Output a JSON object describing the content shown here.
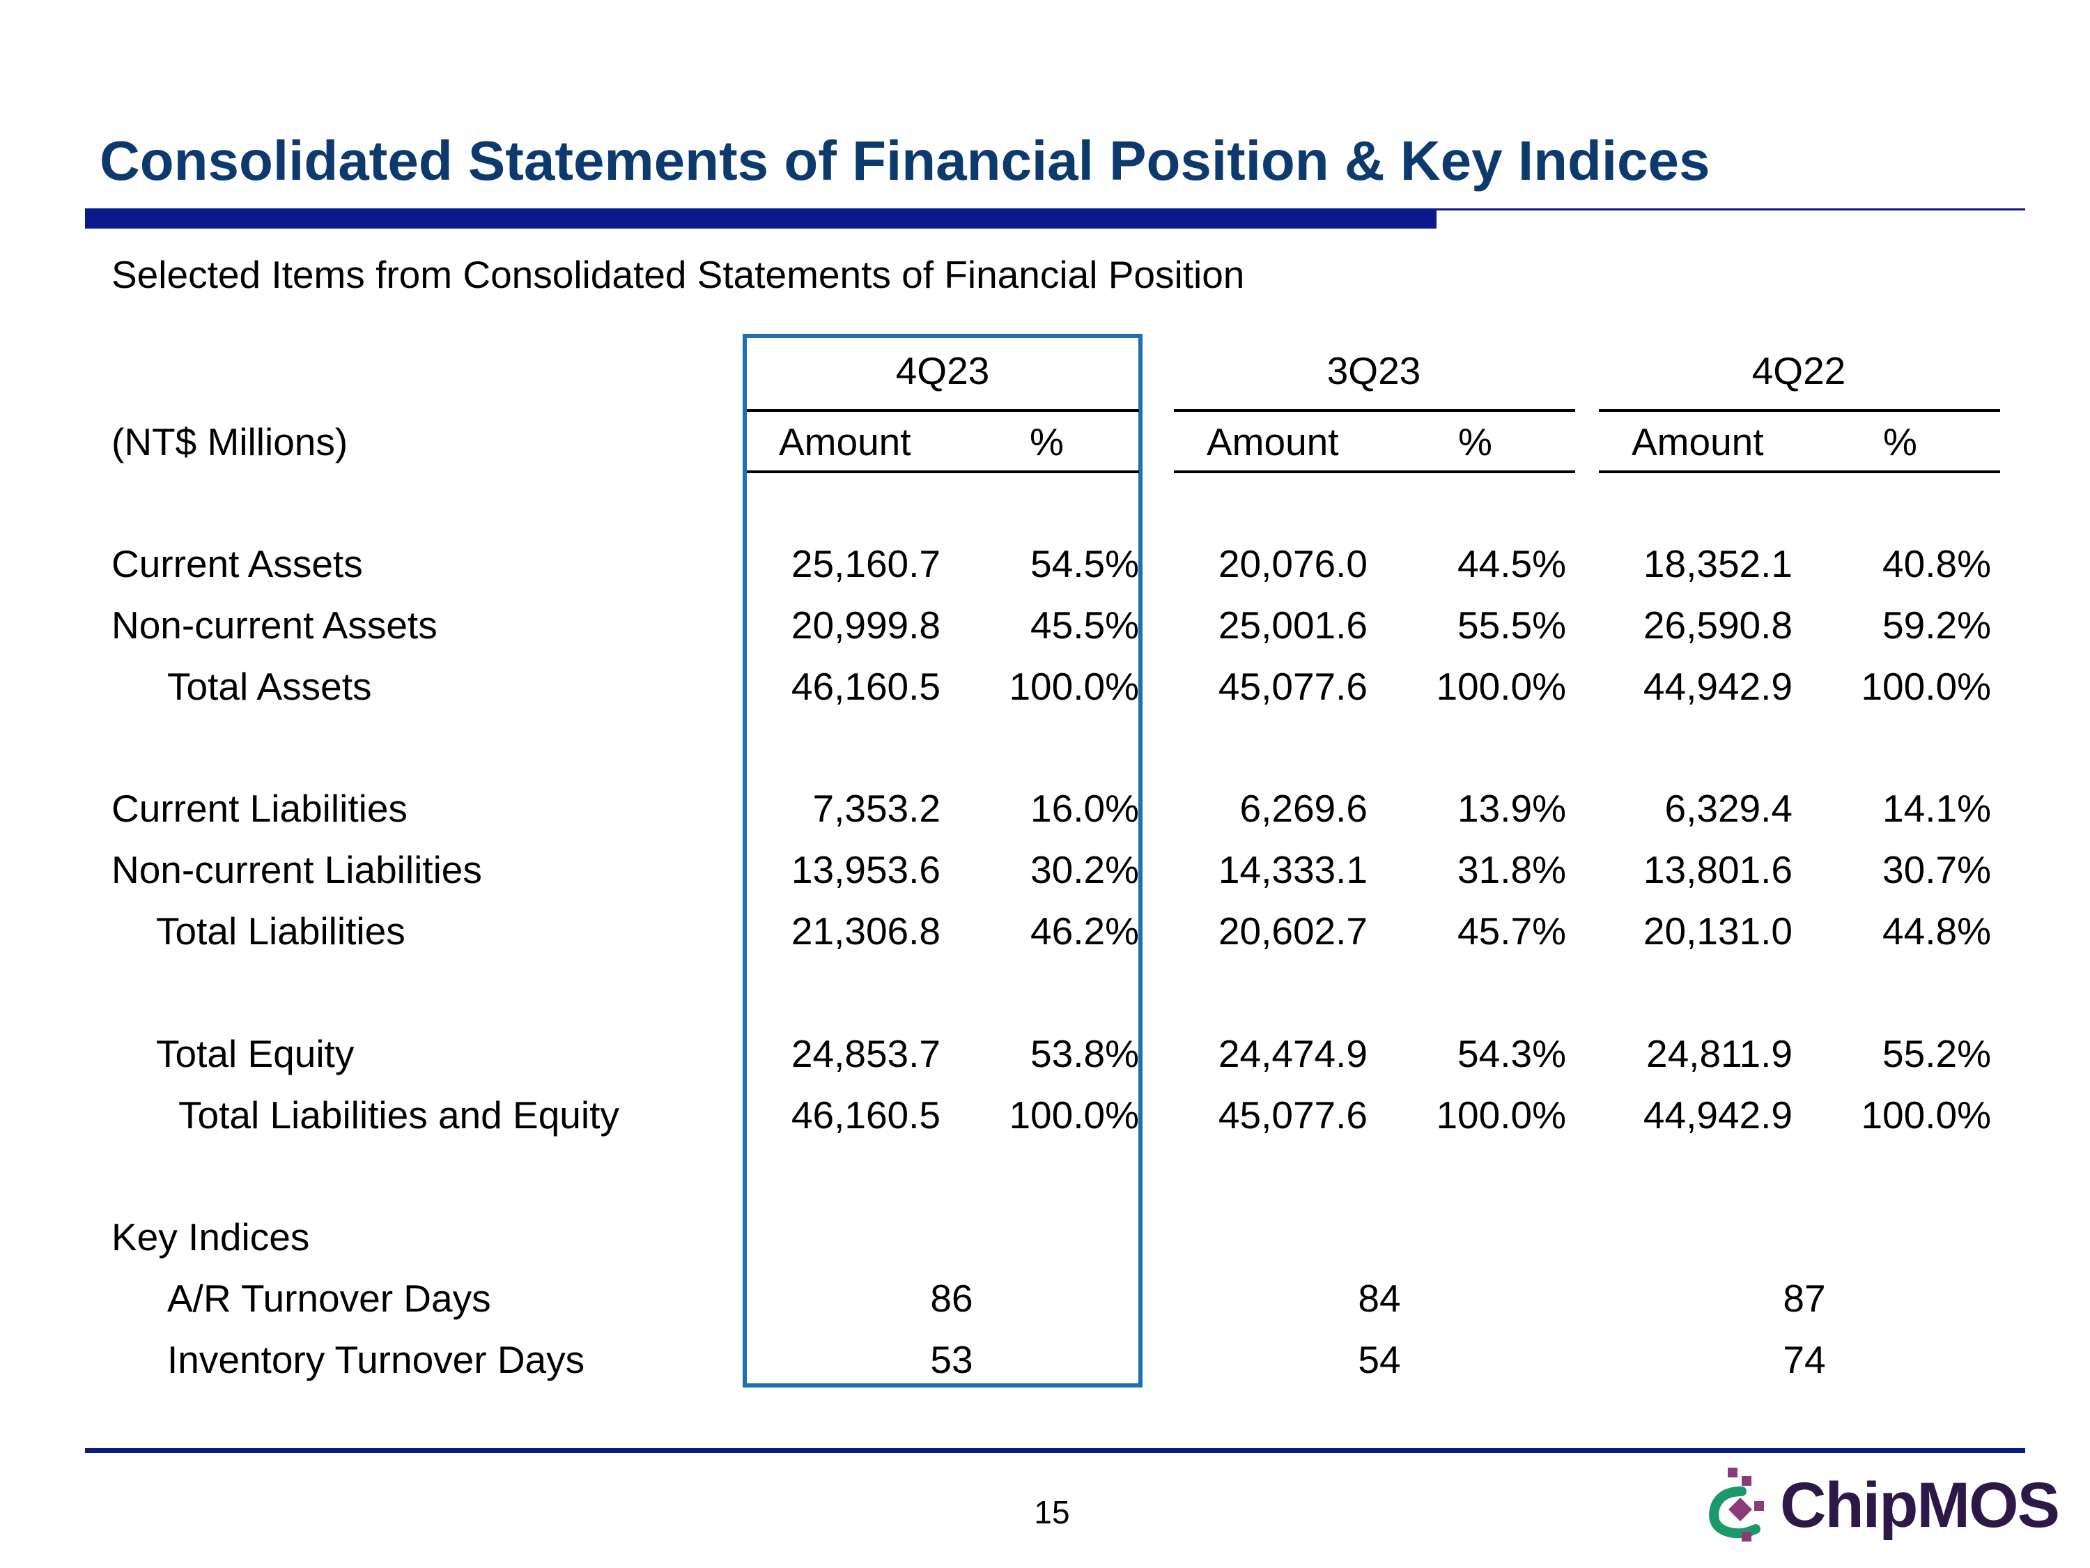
{
  "slide": {
    "title": "Consolidated Statements of Financial Position & Key Indices",
    "subtitle": "Selected Items from Consolidated Statements of Financial Position",
    "page_number": "15",
    "logo_text": "ChipMOS"
  },
  "table": {
    "unit_label": "(NT$ Millions)",
    "periods": [
      "4Q23",
      "3Q23",
      "4Q22"
    ],
    "amount_header": "Amount",
    "pct_header": "%",
    "highlighted_period": "4Q23",
    "rows": [
      {
        "label": "Current Assets",
        "values": [
          "25,160.7",
          "54.5%",
          "20,076.0",
          "44.5%",
          "18,352.1",
          "40.8%"
        ]
      },
      {
        "label": "Non-current Assets",
        "values": [
          "20,999.8",
          "45.5%",
          "25,001.6",
          "55.5%",
          "26,590.8",
          "59.2%"
        ]
      },
      {
        "label": "Total Assets",
        "values": [
          "46,160.5",
          "100.0%",
          "45,077.6",
          "100.0%",
          "44,942.9",
          "100.0%"
        ]
      },
      {
        "label": "Current Liabilities",
        "values": [
          "7,353.2",
          "16.0%",
          "6,269.6",
          "13.9%",
          "6,329.4",
          "14.1%"
        ]
      },
      {
        "label": "Non-current Liabilities",
        "values": [
          "13,953.6",
          "30.2%",
          "14,333.1",
          "31.8%",
          "13,801.6",
          "30.7%"
        ]
      },
      {
        "label": "Total Liabilities",
        "values": [
          "21,306.8",
          "46.2%",
          "20,602.7",
          "45.7%",
          "20,131.0",
          "44.8%"
        ]
      },
      {
        "label": "Total Equity",
        "values": [
          "24,853.7",
          "53.8%",
          "24,474.9",
          "54.3%",
          "24,811.9",
          "55.2%"
        ]
      },
      {
        "label": "Total Liabilities and Equity",
        "values": [
          "46,160.5",
          "100.0%",
          "45,077.6",
          "100.0%",
          "44,942.9",
          "100.0%"
        ]
      }
    ],
    "key_indices_label": "Key Indices",
    "indices": [
      {
        "label": "A/R Turnover Days",
        "values": [
          "86",
          "84",
          "87"
        ]
      },
      {
        "label": "Inventory Turnover Days",
        "values": [
          "53",
          "54",
          "74"
        ]
      }
    ]
  },
  "colors": {
    "title": "#0d3a6e",
    "rule": "#0b1a8a",
    "highlight_border": "#1f6fb3",
    "logo_text": "#2e1848",
    "logo_green": "#1a9a6a",
    "logo_purple": "#8b3a7a"
  }
}
